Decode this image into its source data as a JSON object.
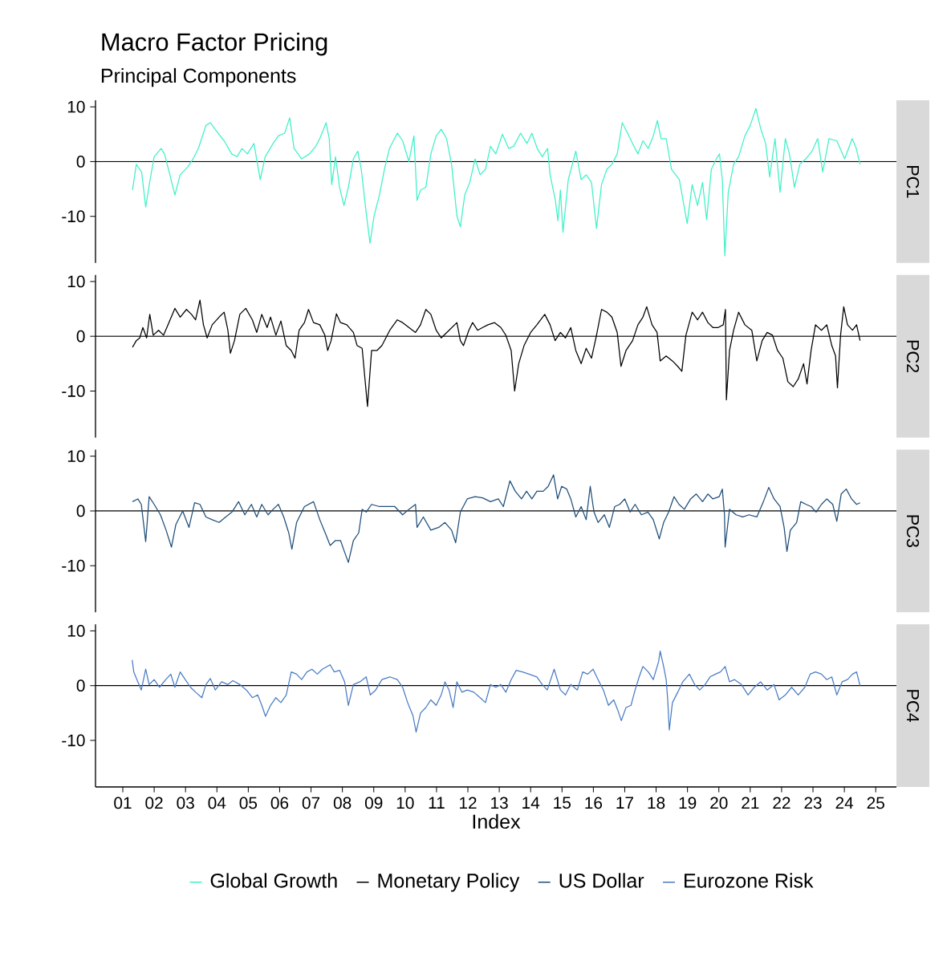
{
  "chart_data": [
    {
      "type": "line",
      "title": "Macro Factor Pricing",
      "subtitle": "Principal Components",
      "y2label": "PC1",
      "xlim": [
        2000.13,
        2025.66
      ],
      "ylim": [
        -18.5,
        11.2
      ],
      "yticks": [
        -10,
        0,
        10
      ],
      "tick_labels": "y",
      "legend": "bottom",
      "ref_lines": [
        {
          "axis": "y",
          "value": 0
        }
      ],
      "series": [
        {
          "name": "Global Growth",
          "color": "#40f0c8",
          "x": [
            2001.31,
            2001.43,
            2001.6,
            2001.73,
            2001.87,
            2002.0,
            2002.22,
            2002.33,
            2002.5,
            2002.66,
            2002.83,
            2003.08,
            2003.24,
            2003.41,
            2003.65,
            2003.79,
            2003.98,
            2004.23,
            2004.47,
            2004.64,
            2004.8,
            2004.97,
            2005.18,
            2005.38,
            2005.54,
            2005.79,
            2005.96,
            2006.16,
            2006.32,
            2006.46,
            2006.7,
            2006.95,
            2007.15,
            2007.28,
            2007.48,
            2007.58,
            2007.66,
            2007.78,
            2007.91,
            2008.05,
            2008.19,
            2008.35,
            2008.49,
            2008.6,
            2008.76,
            2008.88,
            2009.01,
            2009.18,
            2009.34,
            2009.5,
            2009.75,
            2009.92,
            2010.12,
            2010.28,
            2010.38,
            2010.49,
            2010.66,
            2010.82,
            2010.99,
            2011.15,
            2011.32,
            2011.48,
            2011.65,
            2011.76,
            2011.9,
            2012.06,
            2012.23,
            2012.39,
            2012.56,
            2012.72,
            2012.89,
            2013.1,
            2013.3,
            2013.46,
            2013.68,
            2013.88,
            2014.04,
            2014.21,
            2014.37,
            2014.54,
            2014.62,
            2014.79,
            2014.87,
            2014.95,
            2015.03,
            2015.2,
            2015.44,
            2015.61,
            2015.77,
            2015.94,
            2016.1,
            2016.26,
            2016.43,
            2016.59,
            2016.76,
            2016.92,
            2017.09,
            2017.25,
            2017.42,
            2017.58,
            2017.75,
            2017.91,
            2018.04,
            2018.16,
            2018.32,
            2018.49,
            2018.74,
            2018.99,
            2019.15,
            2019.32,
            2019.48,
            2019.61,
            2019.76,
            2019.92,
            2020.02,
            2020.11,
            2020.19,
            2020.3,
            2020.47,
            2020.63,
            2020.83,
            2021.0,
            2021.18,
            2021.33,
            2021.49,
            2021.62,
            2021.79,
            2021.95,
            2022.12,
            2022.25,
            2022.41,
            2022.58,
            2022.77,
            2022.97,
            2023.15,
            2023.31,
            2023.51,
            2023.76,
            2024.01,
            2024.25,
            2024.38,
            2024.5
          ],
          "values": [
            -5.2,
            -0.5,
            -1.9,
            -8.3,
            -3.3,
            0.9,
            2.4,
            1.4,
            -2.4,
            -6.1,
            -2.4,
            -0.9,
            0.5,
            2.4,
            6.6,
            7.1,
            5.6,
            3.8,
            1.4,
            0.9,
            2.4,
            1.4,
            3.3,
            -3.3,
            0.9,
            3.3,
            4.7,
            5.2,
            8.0,
            2.4,
            0.5,
            1.4,
            2.8,
            4.2,
            7.1,
            4.2,
            -4.2,
            0.9,
            -4.7,
            -8.0,
            -4.7,
            0.5,
            1.9,
            -1.4,
            -9.4,
            -14.9,
            -9.9,
            -6.1,
            -1.4,
            2.4,
            5.2,
            3.8,
            0,
            4.7,
            -7.1,
            -5.2,
            -4.7,
            1.4,
            4.7,
            5.9,
            4.2,
            -0.5,
            -9.9,
            -11.9,
            -6.1,
            -3.8,
            0.5,
            -2.4,
            -1.4,
            2.8,
            1.4,
            5.0,
            2.4,
            2.8,
            5.2,
            3.3,
            5.2,
            2.4,
            0.9,
            2.4,
            -2.4,
            -7.1,
            -10.8,
            -5.2,
            -12.9,
            -3.3,
            1.9,
            -3.3,
            -2.4,
            -3.8,
            -12.2,
            -4.2,
            -1.4,
            -0.5,
            1.4,
            7.1,
            5.2,
            3.3,
            1.4,
            3.8,
            2.4,
            4.7,
            7.5,
            4.2,
            4.2,
            -1.4,
            -3.3,
            -11.3,
            -4.2,
            -8.0,
            -3.8,
            -10.6,
            -1.4,
            0.5,
            1.4,
            -3.3,
            -17.2,
            -5.6,
            -0.5,
            0.9,
            4.7,
            6.6,
            9.7,
            6.1,
            3.3,
            -2.8,
            4.2,
            -5.6,
            4.2,
            1.4,
            -4.7,
            -0.5,
            0.5,
            1.9,
            4.2,
            -1.9,
            4.2,
            3.8,
            0.5,
            4.2,
            2.4,
            -0.5
          ]
        }
      ]
    },
    {
      "type": "line",
      "y2label": "PC2",
      "xlim": [
        2000.13,
        2025.66
      ],
      "ylim": [
        -18.5,
        11.2
      ],
      "yticks": [
        -10,
        0,
        10
      ],
      "tick_labels": "y",
      "legend": "bottom",
      "ref_lines": [
        {
          "axis": "y",
          "value": 0
        }
      ],
      "series": [
        {
          "name": "Monetary Policy",
          "color": "#000000",
          "x": [
            2001.31,
            2001.43,
            2001.54,
            2001.64,
            2001.76,
            2001.86,
            2001.97,
            2002.14,
            2002.3,
            2002.47,
            2002.66,
            2002.83,
            2003.03,
            2003.19,
            2003.32,
            2003.46,
            2003.57,
            2003.69,
            2003.85,
            2004.07,
            2004.23,
            2004.35,
            2004.43,
            2004.56,
            2004.73,
            2004.92,
            2005.13,
            2005.27,
            2005.43,
            2005.6,
            2005.71,
            2005.88,
            2006.04,
            2006.21,
            2006.37,
            2006.49,
            2006.62,
            2006.79,
            2006.92,
            2007.08,
            2007.28,
            2007.44,
            2007.53,
            2007.64,
            2007.81,
            2007.94,
            2008.14,
            2008.35,
            2008.47,
            2008.63,
            2008.8,
            2008.93,
            2009.1,
            2009.26,
            2009.51,
            2009.75,
            2009.92,
            2010.12,
            2010.33,
            2010.49,
            2010.66,
            2010.82,
            2010.99,
            2011.15,
            2011.4,
            2011.65,
            2011.76,
            2011.86,
            2012.03,
            2012.15,
            2012.31,
            2012.47,
            2012.64,
            2012.85,
            2013.05,
            2013.21,
            2013.38,
            2013.49,
            2013.62,
            2013.79,
            2014.0,
            2014.2,
            2014.45,
            2014.62,
            2014.78,
            2014.95,
            2015.11,
            2015.28,
            2015.44,
            2015.61,
            2015.77,
            2015.94,
            2016.1,
            2016.26,
            2016.43,
            2016.59,
            2016.76,
            2016.88,
            2017.04,
            2017.25,
            2017.42,
            2017.58,
            2017.7,
            2017.87,
            2018.03,
            2018.13,
            2018.32,
            2018.52,
            2018.69,
            2018.82,
            2018.95,
            2019.15,
            2019.32,
            2019.48,
            2019.65,
            2019.81,
            2019.98,
            2020.14,
            2020.21,
            2020.24,
            2020.34,
            2020.47,
            2020.63,
            2020.83,
            2021.05,
            2021.21,
            2021.38,
            2021.54,
            2021.71,
            2021.87,
            2022.04,
            2022.2,
            2022.37,
            2022.53,
            2022.7,
            2022.81,
            2022.94,
            2023.08,
            2023.27,
            2023.44,
            2023.6,
            2023.72,
            2023.78,
            2023.88,
            2023.98,
            2024.1,
            2024.26,
            2024.39,
            2024.5
          ],
          "values": [
            -2.0,
            -0.8,
            -0.3,
            1.6,
            -0.3,
            4.0,
            0.2,
            1.1,
            0.2,
            2.5,
            5.1,
            3.5,
            4.9,
            4.0,
            3.0,
            6.6,
            2.1,
            -0.3,
            2.1,
            3.5,
            4.4,
            1.1,
            -3.1,
            -0.8,
            4.0,
            5.1,
            3.0,
            0.7,
            4.0,
            1.6,
            3.5,
            0.2,
            2.8,
            -1.7,
            -2.6,
            -4.0,
            1.1,
            2.5,
            4.9,
            2.5,
            2.1,
            0.2,
            -2.6,
            -0.8,
            4.1,
            2.5,
            2.1,
            0.7,
            -1.7,
            -2.2,
            -12.8,
            -2.6,
            -2.6,
            -1.7,
            1.1,
            3.0,
            2.5,
            1.6,
            0.7,
            2.1,
            4.9,
            4.0,
            1.1,
            -0.3,
            1.1,
            2.5,
            -0.8,
            -1.7,
            1.1,
            2.5,
            1.1,
            1.6,
            2.1,
            2.5,
            1.6,
            0.2,
            -2.6,
            -10.0,
            -5.0,
            -1.7,
            0.7,
            2.1,
            4.0,
            2.1,
            -0.8,
            0.7,
            -0.3,
            1.6,
            -2.6,
            -5.0,
            -2.2,
            -4.0,
            0.2,
            4.9,
            4.4,
            3.5,
            0.7,
            -5.5,
            -2.6,
            -0.8,
            2.1,
            3.5,
            5.4,
            2.1,
            0.7,
            -4.5,
            -3.6,
            -4.5,
            -5.5,
            -6.4,
            0.2,
            4.4,
            3.0,
            4.4,
            2.5,
            1.6,
            1.6,
            2.1,
            4.9,
            -11.6,
            -2.6,
            1.1,
            4.4,
            2.1,
            1.1,
            -4.5,
            -0.8,
            0.7,
            0.2,
            -2.6,
            -4.0,
            -8.3,
            -9.2,
            -7.8,
            -5.0,
            -8.7,
            -2.6,
            2.1,
            1.1,
            2.1,
            -1.7,
            -3.6,
            -9.4,
            0.2,
            5.4,
            2.1,
            1.1,
            2.1,
            -0.8
          ]
        }
      ]
    },
    {
      "type": "line",
      "y2label": "PC3",
      "xlim": [
        2000.13,
        2025.66
      ],
      "ylim": [
        -18.5,
        11.2
      ],
      "yticks": [
        -10,
        0,
        10
      ],
      "tick_labels": "y",
      "legend": "bottom",
      "ref_lines": [
        {
          "axis": "y",
          "value": 0
        }
      ],
      "series": [
        {
          "name": "US Dollar",
          "color": "#1f4e79",
          "x": [
            2001.31,
            2001.48,
            2001.59,
            2001.73,
            2001.84,
            2002.0,
            2002.2,
            2002.38,
            2002.55,
            2002.69,
            2002.91,
            2003.11,
            2003.29,
            2003.46,
            2003.65,
            2003.85,
            2004.07,
            2004.28,
            2004.48,
            2004.69,
            2004.89,
            2005.1,
            2005.27,
            2005.43,
            2005.63,
            2005.79,
            2005.96,
            2006.13,
            2006.29,
            2006.39,
            2006.54,
            2006.79,
            2007.08,
            2007.28,
            2007.48,
            2007.61,
            2007.78,
            2007.94,
            2008.05,
            2008.19,
            2008.35,
            2008.52,
            2008.63,
            2008.76,
            2008.93,
            2009.18,
            2009.43,
            2009.67,
            2009.92,
            2010.12,
            2010.33,
            2010.38,
            2010.58,
            2010.82,
            2011.07,
            2011.27,
            2011.48,
            2011.61,
            2011.76,
            2011.98,
            2012.23,
            2012.47,
            2012.72,
            2012.97,
            2013.13,
            2013.34,
            2013.51,
            2013.71,
            2013.87,
            2014.04,
            2014.2,
            2014.4,
            2014.56,
            2014.73,
            2014.86,
            2014.99,
            2015.15,
            2015.28,
            2015.44,
            2015.61,
            2015.77,
            2015.9,
            2016.02,
            2016.15,
            2016.35,
            2016.51,
            2016.68,
            2016.84,
            2017.0,
            2017.17,
            2017.33,
            2017.53,
            2017.74,
            2017.91,
            2018.1,
            2018.24,
            2018.4,
            2018.57,
            2018.73,
            2018.9,
            2019.1,
            2019.28,
            2019.48,
            2019.65,
            2019.81,
            2020.01,
            2020.11,
            2020.18,
            2020.2,
            2020.34,
            2020.55,
            2020.76,
            2020.96,
            2021.21,
            2021.42,
            2021.59,
            2021.76,
            2021.95,
            2022.08,
            2022.17,
            2022.28,
            2022.48,
            2022.61,
            2022.78,
            2022.94,
            2023.1,
            2023.27,
            2023.44,
            2023.63,
            2023.76,
            2023.9,
            2024.06,
            2024.23,
            2024.39,
            2024.5
          ],
          "values": [
            1.7,
            2.2,
            1.2,
            -5.6,
            2.6,
            1.2,
            -0.7,
            -3.5,
            -6.6,
            -2.5,
            0,
            -3.0,
            1.5,
            1.2,
            -1.1,
            -1.6,
            -2.1,
            -1.1,
            -0.2,
            1.7,
            -0.7,
            1.2,
            -1.1,
            1.2,
            -0.7,
            0.3,
            1.2,
            -1.1,
            -4.0,
            -7.0,
            -2.1,
            0.8,
            1.7,
            -1.6,
            -4.4,
            -6.3,
            -5.4,
            -5.4,
            -7.2,
            -9.4,
            -5.4,
            -4.0,
            0.3,
            -0.2,
            1.2,
            0.8,
            0.8,
            0.8,
            -0.7,
            0.3,
            1.2,
            -3.0,
            -1.1,
            -3.5,
            -3.0,
            -2.1,
            -3.5,
            -5.8,
            -0.2,
            2.2,
            2.6,
            2.4,
            1.7,
            2.2,
            0.8,
            5.5,
            3.6,
            2.2,
            3.6,
            2.2,
            3.6,
            3.6,
            4.5,
            6.6,
            2.2,
            4.5,
            4.0,
            2.2,
            -1.1,
            0.8,
            -1.6,
            4.5,
            -0.2,
            -2.1,
            -0.7,
            -3.0,
            0.8,
            1.2,
            2.2,
            -0.2,
            1.2,
            -0.7,
            -0.2,
            -1.6,
            -5.1,
            -2.1,
            -0.2,
            2.6,
            1.2,
            0.3,
            2.2,
            3.1,
            1.7,
            3.1,
            2.2,
            2.6,
            4.0,
            -0.7,
            -6.6,
            0.3,
            -0.7,
            -1.1,
            -0.7,
            -1.1,
            1.7,
            4.3,
            2.2,
            0.8,
            -3.0,
            -7.4,
            -3.5,
            -2.1,
            1.7,
            1.2,
            0.8,
            -0.2,
            1.2,
            2.2,
            1.2,
            -1.9,
            3.1,
            4.0,
            2.2,
            1.2,
            1.5
          ]
        }
      ]
    },
    {
      "type": "line",
      "y2label": "PC4",
      "xlabel": "Index",
      "xlim": [
        2000.13,
        2025.66
      ],
      "ylim": [
        -18.5,
        11.2
      ],
      "yticks": [
        -10,
        0,
        10
      ],
      "legend": "bottom",
      "ref_lines": [
        {
          "axis": "y",
          "value": 0
        }
      ],
      "xticks": [
        {
          "value": 2001,
          "label": "01"
        },
        {
          "value": 2002,
          "label": "02"
        },
        {
          "value": 2003,
          "label": "03"
        },
        {
          "value": 2004,
          "label": "04"
        },
        {
          "value": 2005,
          "label": "05"
        },
        {
          "value": 2006,
          "label": "06"
        },
        {
          "value": 2007,
          "label": "07"
        },
        {
          "value": 2008,
          "label": "08"
        },
        {
          "value": 2009,
          "label": "09"
        },
        {
          "value": 2010,
          "label": "10"
        },
        {
          "value": 2011,
          "label": "11"
        },
        {
          "value": 2012,
          "label": "12"
        },
        {
          "value": 2013,
          "label": "13"
        },
        {
          "value": 2014,
          "label": "14"
        },
        {
          "value": 2015,
          "label": "15"
        },
        {
          "value": 2016,
          "label": "16"
        },
        {
          "value": 2017,
          "label": "17"
        },
        {
          "value": 2018,
          "label": "18"
        },
        {
          "value": 2019,
          "label": "19"
        },
        {
          "value": 2020,
          "label": "20"
        },
        {
          "value": 2021,
          "label": "21"
        },
        {
          "value": 2022,
          "label": "22"
        },
        {
          "value": 2023,
          "label": "23"
        },
        {
          "value": 2024,
          "label": "24"
        },
        {
          "value": 2025,
          "label": "25"
        }
      ],
      "series": [
        {
          "name": "Eurozone Risk",
          "color": "#4a7cc4",
          "x": [
            2001.3,
            2001.35,
            2001.48,
            2001.59,
            2001.73,
            2001.84,
            2002.0,
            2002.17,
            2002.37,
            2002.53,
            2002.66,
            2002.83,
            2002.99,
            2003.16,
            2003.32,
            2003.52,
            2003.65,
            2003.79,
            2003.95,
            2004.15,
            2004.35,
            2004.51,
            2004.73,
            2004.94,
            2005.13,
            2005.3,
            2005.43,
            2005.55,
            2005.71,
            2005.88,
            2006.04,
            2006.21,
            2006.37,
            2006.54,
            2006.7,
            2006.87,
            2007.03,
            2007.2,
            2007.36,
            2007.61,
            2007.74,
            2007.91,
            2008.07,
            2008.19,
            2008.35,
            2008.56,
            2008.76,
            2008.89,
            2009.06,
            2009.26,
            2009.51,
            2009.75,
            2009.92,
            2010.08,
            2010.25,
            2010.35,
            2010.49,
            2010.66,
            2010.82,
            2010.99,
            2011.15,
            2011.27,
            2011.4,
            2011.53,
            2011.65,
            2011.81,
            2011.98,
            2012.19,
            2012.39,
            2012.56,
            2012.72,
            2012.89,
            2013.05,
            2013.21,
            2013.38,
            2013.54,
            2013.74,
            2013.95,
            2014.2,
            2014.37,
            2014.53,
            2014.75,
            2014.95,
            2015.11,
            2015.28,
            2015.49,
            2015.66,
            2015.82,
            2015.99,
            2016.15,
            2016.32,
            2016.48,
            2016.65,
            2016.78,
            2016.89,
            2017.04,
            2017.2,
            2017.33,
            2017.46,
            2017.58,
            2017.75,
            2017.91,
            2018.08,
            2018.13,
            2018.24,
            2018.32,
            2018.37,
            2018.42,
            2018.52,
            2018.69,
            2018.85,
            2019.06,
            2019.23,
            2019.39,
            2019.56,
            2019.72,
            2019.89,
            2020.05,
            2020.2,
            2020.34,
            2020.5,
            2020.72,
            2020.93,
            2021.13,
            2021.33,
            2021.54,
            2021.76,
            2021.92,
            2022.12,
            2022.32,
            2022.53,
            2022.74,
            2022.91,
            2023.08,
            2023.27,
            2023.44,
            2023.6,
            2023.76,
            2023.93,
            2024.1,
            2024.26,
            2024.39,
            2024.5
          ],
          "values": [
            4.7,
            2.5,
            0.7,
            -0.8,
            3.0,
            0.2,
            1.1,
            -0.3,
            1.1,
            2.1,
            -0.3,
            2.5,
            1.1,
            -0.3,
            -1.2,
            -2.2,
            0.2,
            1.3,
            -0.8,
            0.7,
            0.2,
            0.9,
            0.2,
            -0.8,
            -2.2,
            -1.7,
            -3.6,
            -5.6,
            -3.6,
            -2.2,
            -3.1,
            -1.7,
            2.5,
            2.1,
            1.1,
            2.5,
            3.0,
            2.1,
            3.0,
            3.8,
            2.5,
            2.8,
            0.7,
            -3.6,
            0.2,
            0.7,
            1.6,
            -1.7,
            -0.8,
            1.1,
            1.6,
            1.1,
            -0.3,
            -3.1,
            -5.5,
            -8.5,
            -5.0,
            -4.0,
            -2.6,
            -3.6,
            -1.7,
            0.7,
            -0.8,
            -4.0,
            0.7,
            -1.2,
            -0.8,
            -1.2,
            -2.2,
            -3.1,
            0.2,
            -0.3,
            0.2,
            -1.2,
            1.1,
            2.8,
            2.5,
            2.1,
            1.6,
            0.2,
            -0.8,
            3.0,
            -0.8,
            -1.7,
            0.2,
            -0.8,
            2.5,
            2.1,
            3.0,
            1.1,
            -0.8,
            -3.6,
            -2.6,
            -4.5,
            -6.4,
            -4.0,
            -3.6,
            -0.8,
            1.6,
            3.5,
            2.5,
            1.1,
            4.4,
            6.3,
            3.5,
            1.1,
            -2.6,
            -8.1,
            -3.1,
            -1.2,
            0.7,
            2.1,
            0.2,
            -0.8,
            0.2,
            1.6,
            2.1,
            2.5,
            3.5,
            0.7,
            1.1,
            0.2,
            -1.7,
            -0.3,
            0.7,
            -0.8,
            0.2,
            -2.6,
            -1.7,
            -0.3,
            -1.7,
            -0.3,
            2.1,
            2.5,
            2.1,
            1.1,
            1.6,
            -1.7,
            0.7,
            1.1,
            2.1,
            2.5,
            0
          ]
        }
      ]
    }
  ]
}
